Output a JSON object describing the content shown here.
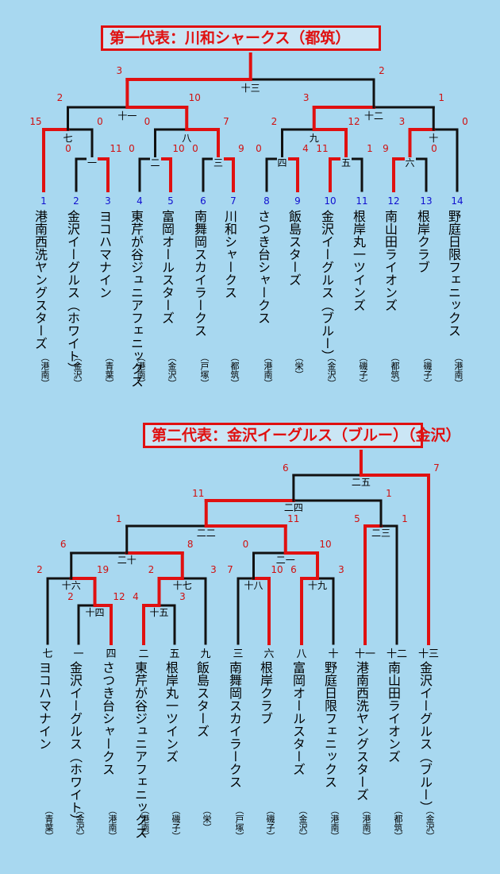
{
  "bracket1": {
    "title": "第一代表：川和シャークス（都筑）",
    "teams": [
      {
        "seed": "1",
        "name": "港南西洗ヤングスターズ",
        "aff": "（港南）"
      },
      {
        "seed": "2",
        "name": "金沢イーグルス（ホワイト）",
        "aff": "（金沢）"
      },
      {
        "seed": "3",
        "name": "ヨコハマナイン",
        "aff": "（青葉）"
      },
      {
        "seed": "4",
        "name": "東芹が谷ジュニアフェニックス",
        "aff": "（港南）"
      },
      {
        "seed": "5",
        "name": "富岡オールスターズ",
        "aff": "（金沢）"
      },
      {
        "seed": "6",
        "name": "南舞岡スカイラークス",
        "aff": "（戸塚）"
      },
      {
        "seed": "7",
        "name": "川和シャークス",
        "aff": "（都筑）"
      },
      {
        "seed": "8",
        "name": "さつき台シャークス",
        "aff": "（港南）"
      },
      {
        "seed": "9",
        "name": "飯島スターズ",
        "aff": "（栄）"
      },
      {
        "seed": "10",
        "name": "金沢イーグルス（ブルー）",
        "aff": "（金沢）"
      },
      {
        "seed": "11",
        "name": "根岸丸一ツインズ",
        "aff": "（磯子）"
      },
      {
        "seed": "12",
        "name": "南山田ライオンズ",
        "aff": "（都筑）"
      },
      {
        "seed": "13",
        "name": "根岸クラブ",
        "aff": "（磯子）"
      },
      {
        "seed": "14",
        "name": "野庭日限フェニックス",
        "aff": "（港南）"
      }
    ],
    "matches": [
      "一",
      "二",
      "三",
      "四",
      "五",
      "六",
      "七",
      "八",
      "九",
      "十",
      "十一",
      "十二",
      "十三"
    ],
    "scores": {
      "m1": [
        "0",
        "11"
      ],
      "m2": [
        "0",
        "10"
      ],
      "m3": [
        "0",
        "9"
      ],
      "m4": [
        "0",
        "4"
      ],
      "m5": [
        "11",
        "1"
      ],
      "m6": [
        "9",
        "0"
      ],
      "m7": [
        "15",
        "0"
      ],
      "m8": [
        "0",
        "7"
      ],
      "m9": [
        "2",
        "12"
      ],
      "m10": [
        "3",
        "0"
      ],
      "m11": [
        "2",
        "10"
      ],
      "m12": [
        "3",
        "1"
      ],
      "m13": [
        "3",
        "2"
      ]
    }
  },
  "bracket2": {
    "title": "第二代表：金沢イーグルス（ブルー）（金沢）",
    "teams": [
      {
        "seed": "七",
        "name": "ヨコハマナイン",
        "aff": "（青葉）"
      },
      {
        "seed": "一",
        "name": "金沢イーグルス（ホワイト）",
        "aff": "（金沢）"
      },
      {
        "seed": "四",
        "name": "さつき台シャークス",
        "aff": "（港南）"
      },
      {
        "seed": "二",
        "name": "東芹が谷ジュニアフェニックス",
        "aff": "（港南）"
      },
      {
        "seed": "五",
        "name": "根岸丸一ツインズ",
        "aff": "（磯子）"
      },
      {
        "seed": "九",
        "name": "飯島スターズ",
        "aff": "（栄）"
      },
      {
        "seed": "三",
        "name": "南舞岡スカイラークス",
        "aff": "（戸塚）"
      },
      {
        "seed": "六",
        "name": "根岸クラブ",
        "aff": "（磯子）"
      },
      {
        "seed": "八",
        "name": "富岡オールスターズ",
        "aff": "（金沢）"
      },
      {
        "seed": "十",
        "name": "野庭日限フェニックス",
        "aff": "（港南）"
      },
      {
        "seed": "十一",
        "name": "港南西洗ヤングスターズ",
        "aff": "（港南）"
      },
      {
        "seed": "十二",
        "name": "南山田ライオンズ",
        "aff": "（都筑）"
      },
      {
        "seed": "十三",
        "name": "金沢イーグルス（ブルー）",
        "aff": "（金沢）"
      }
    ],
    "matches": [
      "十四",
      "十五",
      "十六",
      "十七",
      "十八",
      "十九",
      "二十",
      "二一",
      "二二",
      "二三",
      "二四",
      "二五"
    ],
    "scores": {
      "m14": [
        "2",
        "12"
      ],
      "m15": [
        "4",
        "3"
      ],
      "m16": [
        "2",
        "19"
      ],
      "m17": [
        "2",
        "3"
      ],
      "m18": [
        "7",
        "10"
      ],
      "m19": [
        "6",
        "3"
      ],
      "m20": [
        "6",
        "8"
      ],
      "m21": [
        "0",
        "10"
      ],
      "m22": [
        "1",
        "11"
      ],
      "m23": [
        "5",
        "1"
      ],
      "m24": [
        "11",
        "1"
      ],
      "m25": [
        "6",
        "7"
      ]
    }
  }
}
